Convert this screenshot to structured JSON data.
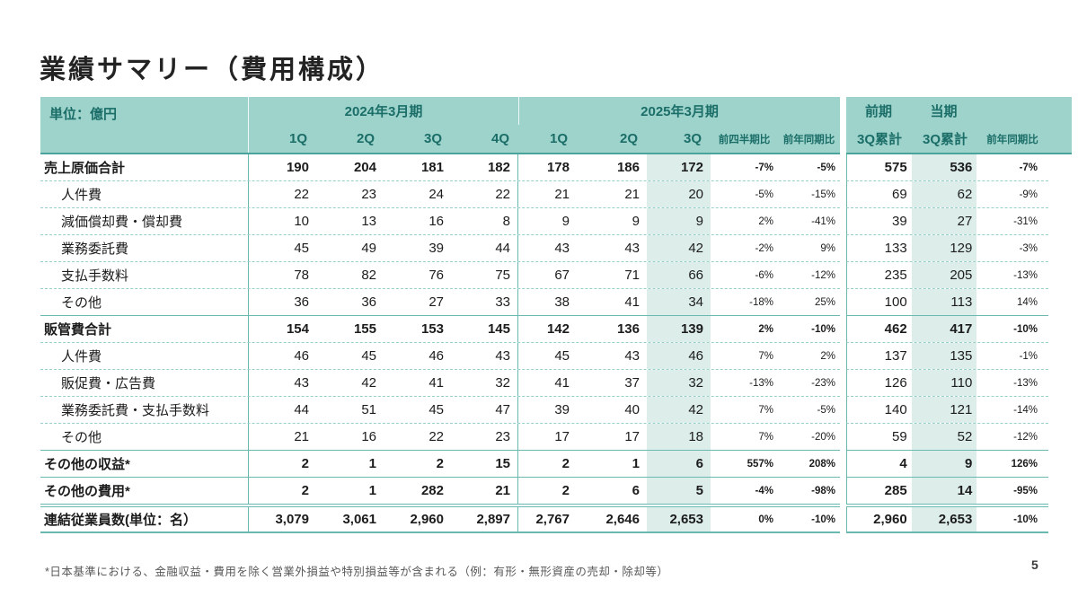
{
  "slide": {
    "title": "業績サマリー（費用構成）",
    "footnote": "*日本基準における、金融収益・費用を除く営業外損益や特別損益等が含まれる（例：有形・無形資産の売却・除却等）",
    "page_number": "5"
  },
  "colors": {
    "header_bg": "#9ed3cc",
    "header_text": "#1b6e68",
    "highlight_column": "#dcedea",
    "solid_line": "#69b9b1",
    "dashed_line": "#96d0c9",
    "body_text": "#1c1c1c",
    "footnote_text": "#595959"
  },
  "table": {
    "unit_label": "単位：億円",
    "group_2024": "2024年3月期",
    "group_2025": "2025年3月期",
    "cols_2024": [
      "1Q",
      "2Q",
      "3Q",
      "4Q"
    ],
    "cols_2025": [
      "1Q",
      "2Q",
      "3Q"
    ],
    "col_pqoq": "前四半期比",
    "col_pyoy": "前年同期比",
    "right": {
      "prev_label": "前期",
      "curr_label": "当期",
      "prev_cum": "3Q累計",
      "curr_cum": "3Q累計",
      "col_yoy": "前年同期比"
    },
    "rows": [
      {
        "label": "売上原価合計",
        "style": "total",
        "q2024": [
          "190",
          "204",
          "181",
          "182"
        ],
        "q2025": [
          "178",
          "186",
          "172"
        ],
        "pqoq": "-7%",
        "pyoy": "-5%",
        "prev_cum": "575",
        "curr_cum": "536",
        "yoy": "-7%"
      },
      {
        "label": "人件費",
        "style": "sub",
        "q2024": [
          "22",
          "23",
          "24",
          "22"
        ],
        "q2025": [
          "21",
          "21",
          "20"
        ],
        "pqoq": "-5%",
        "pyoy": "-15%",
        "prev_cum": "69",
        "curr_cum": "62",
        "yoy": "-9%"
      },
      {
        "label": "減価償却費・償却費",
        "style": "sub",
        "q2024": [
          "10",
          "13",
          "16",
          "8"
        ],
        "q2025": [
          "9",
          "9",
          "9"
        ],
        "pqoq": "2%",
        "pyoy": "-41%",
        "prev_cum": "39",
        "curr_cum": "27",
        "yoy": "-31%"
      },
      {
        "label": "業務委託費",
        "style": "sub",
        "q2024": [
          "45",
          "49",
          "39",
          "44"
        ],
        "q2025": [
          "43",
          "43",
          "42"
        ],
        "pqoq": "-2%",
        "pyoy": "9%",
        "prev_cum": "133",
        "curr_cum": "129",
        "yoy": "-3%"
      },
      {
        "label": "支払手数料",
        "style": "sub",
        "q2024": [
          "78",
          "82",
          "76",
          "75"
        ],
        "q2025": [
          "67",
          "71",
          "66"
        ],
        "pqoq": "-6%",
        "pyoy": "-12%",
        "prev_cum": "235",
        "curr_cum": "205",
        "yoy": "-13%"
      },
      {
        "label": "その他",
        "style": "sub",
        "q2024": [
          "36",
          "36",
          "27",
          "33"
        ],
        "q2025": [
          "38",
          "41",
          "34"
        ],
        "pqoq": "-18%",
        "pyoy": "25%",
        "prev_cum": "100",
        "curr_cum": "113",
        "yoy": "14%"
      },
      {
        "label": "販管費合計",
        "style": "total",
        "q2024": [
          "154",
          "155",
          "153",
          "145"
        ],
        "q2025": [
          "142",
          "136",
          "139"
        ],
        "pqoq": "2%",
        "pyoy": "-10%",
        "prev_cum": "462",
        "curr_cum": "417",
        "yoy": "-10%"
      },
      {
        "label": "人件費",
        "style": "sub",
        "q2024": [
          "46",
          "45",
          "46",
          "43"
        ],
        "q2025": [
          "45",
          "43",
          "46"
        ],
        "pqoq": "7%",
        "pyoy": "2%",
        "prev_cum": "137",
        "curr_cum": "135",
        "yoy": "-1%"
      },
      {
        "label": "販促費・広告費",
        "style": "sub",
        "q2024": [
          "43",
          "42",
          "41",
          "32"
        ],
        "q2025": [
          "41",
          "37",
          "32"
        ],
        "pqoq": "-13%",
        "pyoy": "-23%",
        "prev_cum": "126",
        "curr_cum": "110",
        "yoy": "-13%"
      },
      {
        "label": "業務委託費・支払手数料",
        "style": "sub",
        "q2024": [
          "44",
          "51",
          "45",
          "47"
        ],
        "q2025": [
          "39",
          "40",
          "42"
        ],
        "pqoq": "7%",
        "pyoy": "-5%",
        "prev_cum": "140",
        "curr_cum": "121",
        "yoy": "-14%"
      },
      {
        "label": "その他",
        "style": "sub",
        "q2024": [
          "21",
          "16",
          "22",
          "23"
        ],
        "q2025": [
          "17",
          "17",
          "18"
        ],
        "pqoq": "7%",
        "pyoy": "-20%",
        "prev_cum": "59",
        "curr_cum": "52",
        "yoy": "-12%"
      },
      {
        "label": "その他の収益*",
        "style": "total",
        "q2024": [
          "2",
          "1",
          "2",
          "15"
        ],
        "q2025": [
          "2",
          "1",
          "6"
        ],
        "pqoq": "557%",
        "pyoy": "208%",
        "prev_cum": "4",
        "curr_cum": "9",
        "yoy": "126%"
      },
      {
        "label": "その他の費用*",
        "style": "total",
        "q2024": [
          "2",
          "1",
          "282",
          "21"
        ],
        "q2025": [
          "2",
          "6",
          "5"
        ],
        "pqoq": "-4%",
        "pyoy": "-98%",
        "prev_cum": "285",
        "curr_cum": "14",
        "yoy": "-95%"
      },
      {
        "label": "連結従業員数(単位：名）",
        "style": "emp",
        "q2024": [
          "3,079",
          "3,061",
          "2,960",
          "2,897"
        ],
        "q2025": [
          "2,767",
          "2,646",
          "2,653"
        ],
        "pqoq": "0%",
        "pyoy": "-10%",
        "prev_cum": "2,960",
        "curr_cum": "2,653",
        "yoy": "-10%"
      }
    ]
  }
}
